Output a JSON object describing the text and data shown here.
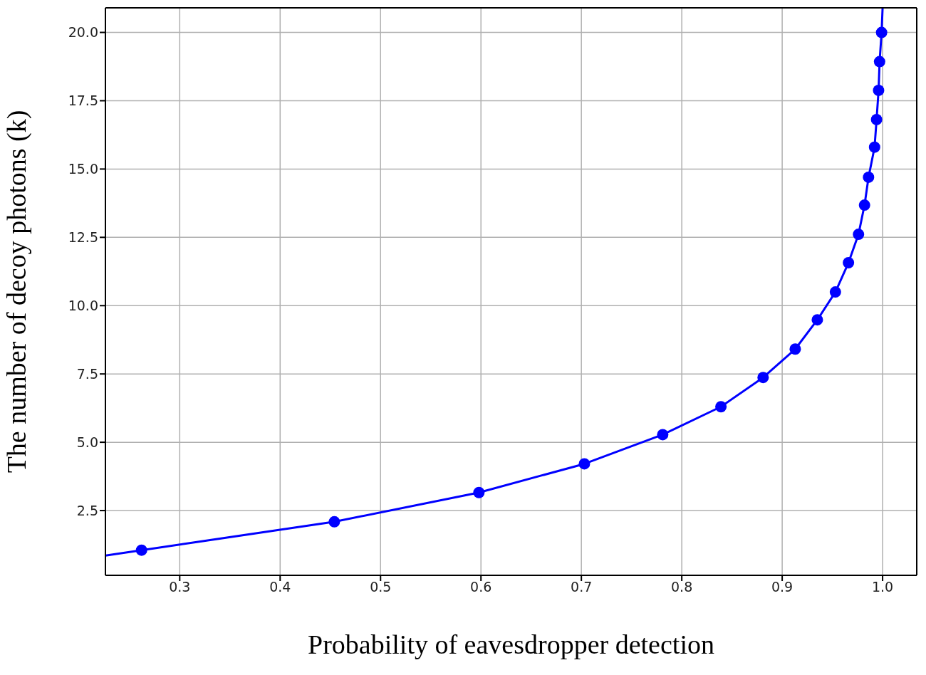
{
  "chart_data": {
    "type": "line",
    "xlabel": "Probability of eavesdropper detection",
    "ylabel": "The number of decoy photons (k)",
    "xlim": [
      0.226,
      1.034
    ],
    "xticks": [
      0.3,
      0.4,
      0.5,
      0.6,
      0.7,
      0.8,
      0.9,
      {
        "value": 1.0,
        "label": "1.0"
      }
    ],
    "ylim": [
      0.13,
      20.9
    ],
    "yticks": [
      {
        "value": 2.5,
        "label": "2.5"
      },
      {
        "value": 5,
        "label": "5.0"
      },
      {
        "value": 7.5,
        "label": "7.5"
      },
      {
        "value": 10,
        "label": "10.0"
      },
      {
        "value": 12.5,
        "label": "12.5"
      },
      {
        "value": 15,
        "label": "15.0"
      },
      {
        "value": 17.5,
        "label": "17.5"
      },
      {
        "value": 20,
        "label": "20.0"
      }
    ],
    "grid": true,
    "series": [
      {
        "color": "#0000ff",
        "marker": "none",
        "line_style": "solid",
        "x": [
          0.226,
          0.262,
          0.454,
          0.598,
          0.703,
          0.781,
          0.839,
          0.881,
          0.913,
          0.935,
          0.953,
          0.966,
          0.976,
          0.982,
          0.986,
          0.992,
          0.994,
          0.996,
          0.997,
          0.999,
          1.0
        ],
        "values": [
          0.85,
          1.05,
          2.09,
          3.16,
          4.21,
          5.28,
          6.3,
          7.37,
          8.41,
          9.48,
          10.5,
          11.57,
          12.61,
          13.68,
          14.7,
          15.8,
          16.81,
          17.88,
          18.93,
          20.0,
          20.9
        ]
      },
      {
        "type": "scatter",
        "color": "#0000ff",
        "marker": "circle",
        "x": [
          0.262,
          0.454,
          0.598,
          0.703,
          0.781,
          0.839,
          0.881,
          0.913,
          0.935,
          0.953,
          0.966,
          0.976,
          0.982,
          0.986,
          0.992,
          0.994,
          0.996,
          0.997,
          0.999
        ],
        "values": [
          1.05,
          2.09,
          3.16,
          4.21,
          5.28,
          6.3,
          7.37,
          8.41,
          9.48,
          10.5,
          11.57,
          12.61,
          13.68,
          14.7,
          15.8,
          16.81,
          17.88,
          18.93,
          20.0
        ]
      }
    ]
  }
}
